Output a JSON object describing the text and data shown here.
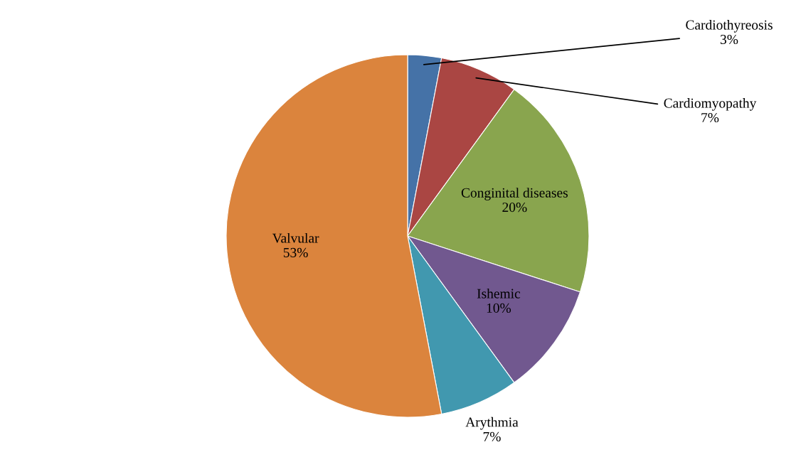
{
  "chart_data": {
    "type": "pie",
    "categories": [
      "Cardiothyreosis",
      "Cardiomyopathy",
      "Conginital diseases",
      "Ishemic",
      "Arythmia",
      "Valvular"
    ],
    "values": [
      3,
      7,
      20,
      10,
      7,
      53
    ],
    "colors": [
      "#4572a7",
      "#aa4643",
      "#89a54e",
      "#71588f",
      "#4198af",
      "#db843d"
    ],
    "value_labels": [
      "3%",
      "7%",
      "20%",
      "10%",
      "7%",
      "53%"
    ]
  }
}
